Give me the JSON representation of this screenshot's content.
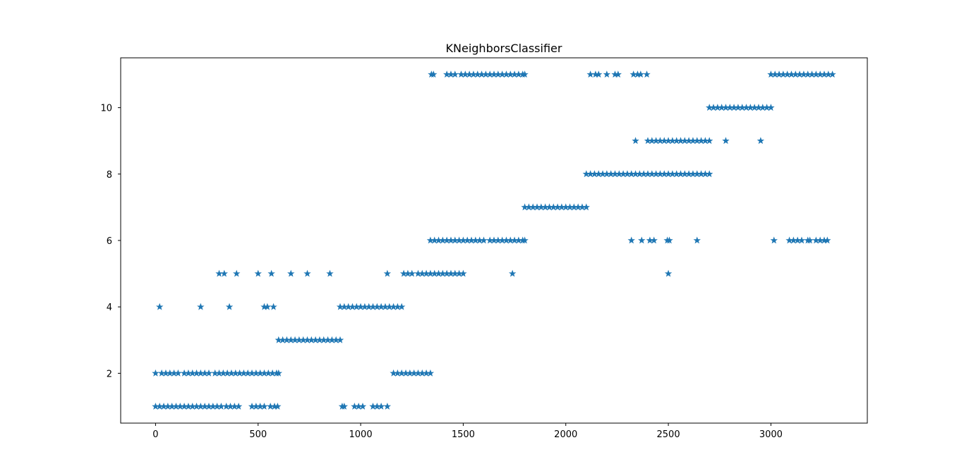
{
  "chart_data": {
    "type": "scatter",
    "title": "KNeighborsClassifier",
    "xlabel": "",
    "ylabel": "",
    "xlim": [
      -170,
      3470
    ],
    "ylim": [
      0.5,
      11.5
    ],
    "x_ticks": [
      0,
      500,
      1000,
      1500,
      2000,
      2500,
      3000
    ],
    "y_ticks": [
      2,
      4,
      6,
      8,
      10
    ],
    "grid": false,
    "legend": "none",
    "marker": "star",
    "color": "#1f77b4",
    "points": [
      {
        "x": 0,
        "y": 1
      },
      {
        "x": 20,
        "y": 1
      },
      {
        "x": 40,
        "y": 1
      },
      {
        "x": 60,
        "y": 1
      },
      {
        "x": 80,
        "y": 1
      },
      {
        "x": 100,
        "y": 1
      },
      {
        "x": 120,
        "y": 1
      },
      {
        "x": 140,
        "y": 1
      },
      {
        "x": 160,
        "y": 1
      },
      {
        "x": 180,
        "y": 1
      },
      {
        "x": 200,
        "y": 1
      },
      {
        "x": 220,
        "y": 1
      },
      {
        "x": 240,
        "y": 1
      },
      {
        "x": 260,
        "y": 1
      },
      {
        "x": 280,
        "y": 1
      },
      {
        "x": 300,
        "y": 1
      },
      {
        "x": 320,
        "y": 1
      },
      {
        "x": 345,
        "y": 1
      },
      {
        "x": 365,
        "y": 1
      },
      {
        "x": 385,
        "y": 1
      },
      {
        "x": 405,
        "y": 1
      },
      {
        "x": 470,
        "y": 1
      },
      {
        "x": 490,
        "y": 1
      },
      {
        "x": 510,
        "y": 1
      },
      {
        "x": 530,
        "y": 1
      },
      {
        "x": 560,
        "y": 1
      },
      {
        "x": 580,
        "y": 1
      },
      {
        "x": 595,
        "y": 1
      },
      {
        "x": 910,
        "y": 1
      },
      {
        "x": 920,
        "y": 1
      },
      {
        "x": 970,
        "y": 1
      },
      {
        "x": 990,
        "y": 1
      },
      {
        "x": 1010,
        "y": 1
      },
      {
        "x": 1060,
        "y": 1
      },
      {
        "x": 1080,
        "y": 1
      },
      {
        "x": 1100,
        "y": 1
      },
      {
        "x": 1130,
        "y": 1
      },
      {
        "x": 0,
        "y": 2
      },
      {
        "x": 30,
        "y": 2
      },
      {
        "x": 50,
        "y": 2
      },
      {
        "x": 70,
        "y": 2
      },
      {
        "x": 90,
        "y": 2
      },
      {
        "x": 110,
        "y": 2
      },
      {
        "x": 140,
        "y": 2
      },
      {
        "x": 160,
        "y": 2
      },
      {
        "x": 180,
        "y": 2
      },
      {
        "x": 200,
        "y": 2
      },
      {
        "x": 220,
        "y": 2
      },
      {
        "x": 240,
        "y": 2
      },
      {
        "x": 260,
        "y": 2
      },
      {
        "x": 290,
        "y": 2
      },
      {
        "x": 310,
        "y": 2
      },
      {
        "x": 330,
        "y": 2
      },
      {
        "x": 350,
        "y": 2
      },
      {
        "x": 370,
        "y": 2
      },
      {
        "x": 390,
        "y": 2
      },
      {
        "x": 410,
        "y": 2
      },
      {
        "x": 430,
        "y": 2
      },
      {
        "x": 450,
        "y": 2
      },
      {
        "x": 470,
        "y": 2
      },
      {
        "x": 490,
        "y": 2
      },
      {
        "x": 510,
        "y": 2
      },
      {
        "x": 530,
        "y": 2
      },
      {
        "x": 550,
        "y": 2
      },
      {
        "x": 570,
        "y": 2
      },
      {
        "x": 590,
        "y": 2
      },
      {
        "x": 600,
        "y": 2
      },
      {
        "x": 1160,
        "y": 2
      },
      {
        "x": 1180,
        "y": 2
      },
      {
        "x": 1200,
        "y": 2
      },
      {
        "x": 1220,
        "y": 2
      },
      {
        "x": 1240,
        "y": 2
      },
      {
        "x": 1260,
        "y": 2
      },
      {
        "x": 1280,
        "y": 2
      },
      {
        "x": 1300,
        "y": 2
      },
      {
        "x": 1320,
        "y": 2
      },
      {
        "x": 1340,
        "y": 2
      },
      {
        "x": 600,
        "y": 3
      },
      {
        "x": 620,
        "y": 3
      },
      {
        "x": 640,
        "y": 3
      },
      {
        "x": 660,
        "y": 3
      },
      {
        "x": 680,
        "y": 3
      },
      {
        "x": 700,
        "y": 3
      },
      {
        "x": 720,
        "y": 3
      },
      {
        "x": 740,
        "y": 3
      },
      {
        "x": 760,
        "y": 3
      },
      {
        "x": 780,
        "y": 3
      },
      {
        "x": 800,
        "y": 3
      },
      {
        "x": 820,
        "y": 3
      },
      {
        "x": 840,
        "y": 3
      },
      {
        "x": 860,
        "y": 3
      },
      {
        "x": 880,
        "y": 3
      },
      {
        "x": 900,
        "y": 3
      },
      {
        "x": 20,
        "y": 4
      },
      {
        "x": 220,
        "y": 4
      },
      {
        "x": 360,
        "y": 4
      },
      {
        "x": 530,
        "y": 4
      },
      {
        "x": 545,
        "y": 4
      },
      {
        "x": 575,
        "y": 4
      },
      {
        "x": 900,
        "y": 4
      },
      {
        "x": 920,
        "y": 4
      },
      {
        "x": 940,
        "y": 4
      },
      {
        "x": 960,
        "y": 4
      },
      {
        "x": 980,
        "y": 4
      },
      {
        "x": 1000,
        "y": 4
      },
      {
        "x": 1020,
        "y": 4
      },
      {
        "x": 1040,
        "y": 4
      },
      {
        "x": 1060,
        "y": 4
      },
      {
        "x": 1080,
        "y": 4
      },
      {
        "x": 1100,
        "y": 4
      },
      {
        "x": 1120,
        "y": 4
      },
      {
        "x": 1140,
        "y": 4
      },
      {
        "x": 1160,
        "y": 4
      },
      {
        "x": 1180,
        "y": 4
      },
      {
        "x": 1200,
        "y": 4
      },
      {
        "x": 310,
        "y": 5
      },
      {
        "x": 335,
        "y": 5
      },
      {
        "x": 395,
        "y": 5
      },
      {
        "x": 500,
        "y": 5
      },
      {
        "x": 565,
        "y": 5
      },
      {
        "x": 660,
        "y": 5
      },
      {
        "x": 740,
        "y": 5
      },
      {
        "x": 850,
        "y": 5
      },
      {
        "x": 1130,
        "y": 5
      },
      {
        "x": 1210,
        "y": 5
      },
      {
        "x": 1230,
        "y": 5
      },
      {
        "x": 1250,
        "y": 5
      },
      {
        "x": 1280,
        "y": 5
      },
      {
        "x": 1300,
        "y": 5
      },
      {
        "x": 1320,
        "y": 5
      },
      {
        "x": 1340,
        "y": 5
      },
      {
        "x": 1360,
        "y": 5
      },
      {
        "x": 1380,
        "y": 5
      },
      {
        "x": 1400,
        "y": 5
      },
      {
        "x": 1420,
        "y": 5
      },
      {
        "x": 1440,
        "y": 5
      },
      {
        "x": 1460,
        "y": 5
      },
      {
        "x": 1480,
        "y": 5
      },
      {
        "x": 1500,
        "y": 5
      },
      {
        "x": 1740,
        "y": 5
      },
      {
        "x": 2500,
        "y": 5
      },
      {
        "x": 1340,
        "y": 6
      },
      {
        "x": 1360,
        "y": 6
      },
      {
        "x": 1380,
        "y": 6
      },
      {
        "x": 1400,
        "y": 6
      },
      {
        "x": 1420,
        "y": 6
      },
      {
        "x": 1440,
        "y": 6
      },
      {
        "x": 1460,
        "y": 6
      },
      {
        "x": 1480,
        "y": 6
      },
      {
        "x": 1500,
        "y": 6
      },
      {
        "x": 1520,
        "y": 6
      },
      {
        "x": 1540,
        "y": 6
      },
      {
        "x": 1560,
        "y": 6
      },
      {
        "x": 1580,
        "y": 6
      },
      {
        "x": 1600,
        "y": 6
      },
      {
        "x": 1630,
        "y": 6
      },
      {
        "x": 1650,
        "y": 6
      },
      {
        "x": 1670,
        "y": 6
      },
      {
        "x": 1690,
        "y": 6
      },
      {
        "x": 1710,
        "y": 6
      },
      {
        "x": 1730,
        "y": 6
      },
      {
        "x": 1750,
        "y": 6
      },
      {
        "x": 1770,
        "y": 6
      },
      {
        "x": 1790,
        "y": 6
      },
      {
        "x": 1800,
        "y": 6
      },
      {
        "x": 2320,
        "y": 6
      },
      {
        "x": 2370,
        "y": 6
      },
      {
        "x": 2410,
        "y": 6
      },
      {
        "x": 2430,
        "y": 6
      },
      {
        "x": 2495,
        "y": 6
      },
      {
        "x": 2505,
        "y": 6
      },
      {
        "x": 2640,
        "y": 6
      },
      {
        "x": 3015,
        "y": 6
      },
      {
        "x": 3090,
        "y": 6
      },
      {
        "x": 3110,
        "y": 6
      },
      {
        "x": 3130,
        "y": 6
      },
      {
        "x": 3150,
        "y": 6
      },
      {
        "x": 3180,
        "y": 6
      },
      {
        "x": 3190,
        "y": 6
      },
      {
        "x": 3220,
        "y": 6
      },
      {
        "x": 3240,
        "y": 6
      },
      {
        "x": 3260,
        "y": 6
      },
      {
        "x": 3275,
        "y": 6
      },
      {
        "x": 1800,
        "y": 7
      },
      {
        "x": 1820,
        "y": 7
      },
      {
        "x": 1840,
        "y": 7
      },
      {
        "x": 1860,
        "y": 7
      },
      {
        "x": 1880,
        "y": 7
      },
      {
        "x": 1900,
        "y": 7
      },
      {
        "x": 1920,
        "y": 7
      },
      {
        "x": 1940,
        "y": 7
      },
      {
        "x": 1960,
        "y": 7
      },
      {
        "x": 1980,
        "y": 7
      },
      {
        "x": 2000,
        "y": 7
      },
      {
        "x": 2020,
        "y": 7
      },
      {
        "x": 2040,
        "y": 7
      },
      {
        "x": 2060,
        "y": 7
      },
      {
        "x": 2080,
        "y": 7
      },
      {
        "x": 2100,
        "y": 7
      },
      {
        "x": 2100,
        "y": 8
      },
      {
        "x": 2120,
        "y": 8
      },
      {
        "x": 2140,
        "y": 8
      },
      {
        "x": 2160,
        "y": 8
      },
      {
        "x": 2180,
        "y": 8
      },
      {
        "x": 2200,
        "y": 8
      },
      {
        "x": 2220,
        "y": 8
      },
      {
        "x": 2240,
        "y": 8
      },
      {
        "x": 2260,
        "y": 8
      },
      {
        "x": 2280,
        "y": 8
      },
      {
        "x": 2300,
        "y": 8
      },
      {
        "x": 2320,
        "y": 8
      },
      {
        "x": 2340,
        "y": 8
      },
      {
        "x": 2360,
        "y": 8
      },
      {
        "x": 2380,
        "y": 8
      },
      {
        "x": 2400,
        "y": 8
      },
      {
        "x": 2420,
        "y": 8
      },
      {
        "x": 2440,
        "y": 8
      },
      {
        "x": 2460,
        "y": 8
      },
      {
        "x": 2480,
        "y": 8
      },
      {
        "x": 2500,
        "y": 8
      },
      {
        "x": 2520,
        "y": 8
      },
      {
        "x": 2540,
        "y": 8
      },
      {
        "x": 2560,
        "y": 8
      },
      {
        "x": 2580,
        "y": 8
      },
      {
        "x": 2600,
        "y": 8
      },
      {
        "x": 2620,
        "y": 8
      },
      {
        "x": 2640,
        "y": 8
      },
      {
        "x": 2660,
        "y": 8
      },
      {
        "x": 2680,
        "y": 8
      },
      {
        "x": 2700,
        "y": 8
      },
      {
        "x": 2340,
        "y": 9
      },
      {
        "x": 2400,
        "y": 9
      },
      {
        "x": 2420,
        "y": 9
      },
      {
        "x": 2440,
        "y": 9
      },
      {
        "x": 2460,
        "y": 9
      },
      {
        "x": 2480,
        "y": 9
      },
      {
        "x": 2500,
        "y": 9
      },
      {
        "x": 2520,
        "y": 9
      },
      {
        "x": 2540,
        "y": 9
      },
      {
        "x": 2560,
        "y": 9
      },
      {
        "x": 2580,
        "y": 9
      },
      {
        "x": 2600,
        "y": 9
      },
      {
        "x": 2620,
        "y": 9
      },
      {
        "x": 2640,
        "y": 9
      },
      {
        "x": 2660,
        "y": 9
      },
      {
        "x": 2680,
        "y": 9
      },
      {
        "x": 2700,
        "y": 9
      },
      {
        "x": 2780,
        "y": 9
      },
      {
        "x": 2950,
        "y": 9
      },
      {
        "x": 2700,
        "y": 10
      },
      {
        "x": 2720,
        "y": 10
      },
      {
        "x": 2740,
        "y": 10
      },
      {
        "x": 2760,
        "y": 10
      },
      {
        "x": 2780,
        "y": 10
      },
      {
        "x": 2800,
        "y": 10
      },
      {
        "x": 2820,
        "y": 10
      },
      {
        "x": 2840,
        "y": 10
      },
      {
        "x": 2860,
        "y": 10
      },
      {
        "x": 2880,
        "y": 10
      },
      {
        "x": 2900,
        "y": 10
      },
      {
        "x": 2920,
        "y": 10
      },
      {
        "x": 2940,
        "y": 10
      },
      {
        "x": 2960,
        "y": 10
      },
      {
        "x": 2980,
        "y": 10
      },
      {
        "x": 3000,
        "y": 10
      },
      {
        "x": 1345,
        "y": 11
      },
      {
        "x": 1355,
        "y": 11
      },
      {
        "x": 1420,
        "y": 11
      },
      {
        "x": 1440,
        "y": 11
      },
      {
        "x": 1460,
        "y": 11
      },
      {
        "x": 1490,
        "y": 11
      },
      {
        "x": 1510,
        "y": 11
      },
      {
        "x": 1530,
        "y": 11
      },
      {
        "x": 1550,
        "y": 11
      },
      {
        "x": 1570,
        "y": 11
      },
      {
        "x": 1590,
        "y": 11
      },
      {
        "x": 1610,
        "y": 11
      },
      {
        "x": 1630,
        "y": 11
      },
      {
        "x": 1650,
        "y": 11
      },
      {
        "x": 1670,
        "y": 11
      },
      {
        "x": 1690,
        "y": 11
      },
      {
        "x": 1710,
        "y": 11
      },
      {
        "x": 1730,
        "y": 11
      },
      {
        "x": 1750,
        "y": 11
      },
      {
        "x": 1770,
        "y": 11
      },
      {
        "x": 1790,
        "y": 11
      },
      {
        "x": 1800,
        "y": 11
      },
      {
        "x": 2120,
        "y": 11
      },
      {
        "x": 2145,
        "y": 11
      },
      {
        "x": 2160,
        "y": 11
      },
      {
        "x": 2200,
        "y": 11
      },
      {
        "x": 2240,
        "y": 11
      },
      {
        "x": 2255,
        "y": 11
      },
      {
        "x": 2330,
        "y": 11
      },
      {
        "x": 2350,
        "y": 11
      },
      {
        "x": 2365,
        "y": 11
      },
      {
        "x": 2395,
        "y": 11
      },
      {
        "x": 3000,
        "y": 11
      },
      {
        "x": 3020,
        "y": 11
      },
      {
        "x": 3040,
        "y": 11
      },
      {
        "x": 3060,
        "y": 11
      },
      {
        "x": 3080,
        "y": 11
      },
      {
        "x": 3100,
        "y": 11
      },
      {
        "x": 3120,
        "y": 11
      },
      {
        "x": 3140,
        "y": 11
      },
      {
        "x": 3160,
        "y": 11
      },
      {
        "x": 3180,
        "y": 11
      },
      {
        "x": 3200,
        "y": 11
      },
      {
        "x": 3220,
        "y": 11
      },
      {
        "x": 3240,
        "y": 11
      },
      {
        "x": 3260,
        "y": 11
      },
      {
        "x": 3280,
        "y": 11
      },
      {
        "x": 3300,
        "y": 11
      }
    ]
  }
}
